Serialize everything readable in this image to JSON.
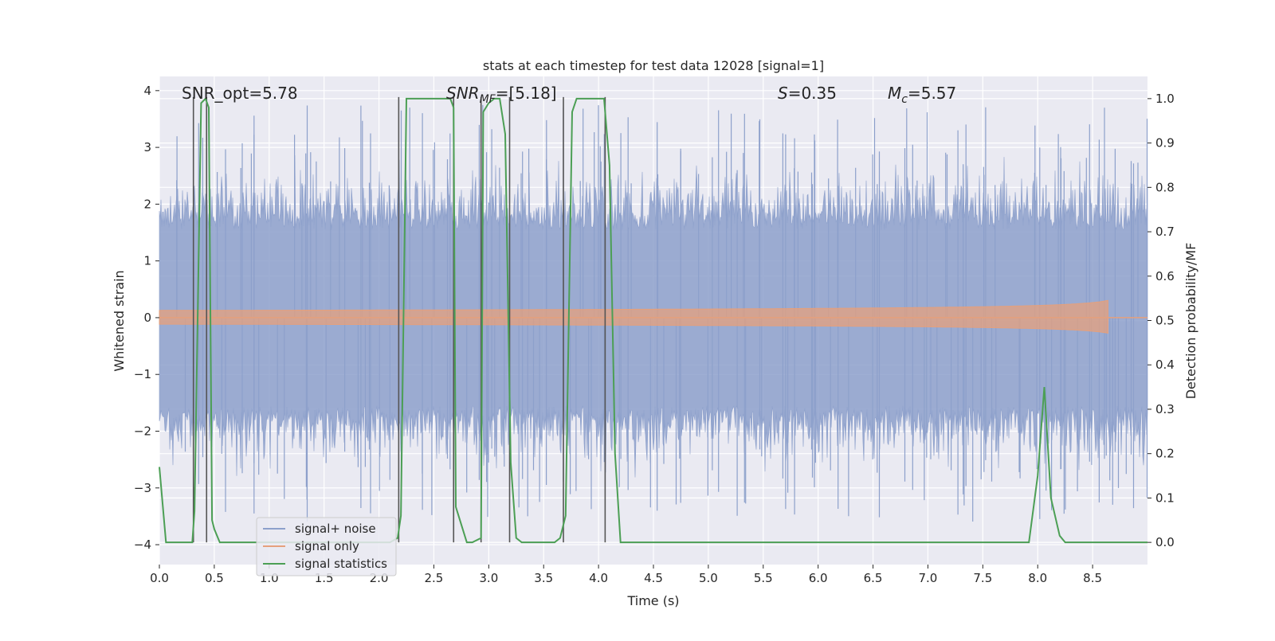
{
  "chart_data": {
    "type": "line",
    "title": "stats at each timestep for test data 12028 [signal=1]",
    "xlabel": "Time (s)",
    "ylabel_left": "Whitened strain",
    "ylabel_right": "Detection probability/MF",
    "xlim": [
      0.0,
      9.0
    ],
    "ylim_left": [
      -4.35,
      4.25
    ],
    "ylim_right": [
      -0.05,
      1.05
    ],
    "xticks": [
      "0.0",
      "0.5",
      "1.0",
      "1.5",
      "2.0",
      "2.5",
      "3.0",
      "3.5",
      "4.0",
      "4.5",
      "5.0",
      "5.5",
      "6.0",
      "6.5",
      "7.0",
      "7.5",
      "8.0",
      "8.5"
    ],
    "yticks_left": [
      "4",
      "3",
      "2",
      "1",
      "0",
      "−1",
      "−2",
      "−3",
      "−4"
    ],
    "yticks_right": [
      "1.0",
      "0.9",
      "0.8",
      "0.7",
      "0.6",
      "0.5",
      "0.4",
      "0.3",
      "0.2",
      "0.1",
      "0.0"
    ],
    "grid": true,
    "legend_position": "lower-left",
    "annotations": {
      "snr_opt": "SNR_opt=5.78",
      "snr_mf": "SNR_MF=[5.18]",
      "s_value": "S=0.35",
      "chirp_mass": "M_c=5.57"
    },
    "series": [
      {
        "name": "signal+ noise",
        "color": "#8da0cb",
        "description_values": {
          "amplitude_typical": 2.3,
          "amplitude_max": 4.0
        }
      },
      {
        "name": "signal only",
        "color": "#e5a07c",
        "merger_time": 8.65,
        "amplitude_at_merger": 0.6
      },
      {
        "name": "signal statistics",
        "color": "#4c9f55",
        "x": [
          0.0,
          0.06,
          0.15,
          0.25,
          0.3,
          0.32,
          0.38,
          0.42,
          0.45,
          0.48,
          0.5,
          0.55,
          0.6,
          0.8,
          1.0,
          1.2,
          1.4,
          1.6,
          1.8,
          2.0,
          2.1,
          2.17,
          2.2,
          2.25,
          2.3,
          2.5,
          2.65,
          2.68,
          2.7,
          2.8,
          2.85,
          2.93,
          2.95,
          3.0,
          3.05,
          3.1,
          3.15,
          3.2,
          3.25,
          3.3,
          3.4,
          3.6,
          3.65,
          3.7,
          3.76,
          3.8,
          3.9,
          4.0,
          4.05,
          4.1,
          4.15,
          4.2,
          4.4,
          5.0,
          6.0,
          7.0,
          7.5,
          7.8,
          7.92,
          8.0,
          8.06,
          8.12,
          8.2,
          8.25,
          8.3,
          8.5,
          8.7,
          9.0
        ],
        "y": [
          0.17,
          0.0,
          0.0,
          0.0,
          0.0,
          0.07,
          0.99,
          1.0,
          0.98,
          0.05,
          0.03,
          0.0,
          0.0,
          0.0,
          0.0,
          0.0,
          0.0,
          0.0,
          0.0,
          0.0,
          0.0,
          0.01,
          0.06,
          1.0,
          1.0,
          1.0,
          1.0,
          0.98,
          0.08,
          0.0,
          0.0,
          0.01,
          0.97,
          0.99,
          1.0,
          1.0,
          0.92,
          0.18,
          0.01,
          0.0,
          0.0,
          0.0,
          0.01,
          0.06,
          0.97,
          1.0,
          1.0,
          1.0,
          1.0,
          0.85,
          0.2,
          0.0,
          0.0,
          0.0,
          0.0,
          0.0,
          0.0,
          0.0,
          0.0,
          0.15,
          0.35,
          0.1,
          0.015,
          0.0,
          0.0,
          0.0,
          0.0,
          0.0
        ]
      }
    ],
    "vertical_lines_x": [
      0.31,
      0.43,
      2.18,
      2.68,
      2.93,
      3.19,
      3.68,
      4.06
    ]
  },
  "legend": {
    "noise_label": "signal+ noise",
    "signal_label": "signal only",
    "stats_label": "signal statistics"
  },
  "colors": {
    "background": "#eaeaf2",
    "noise": "#8da0cb",
    "signal": "#e5a07c",
    "stats": "#4c9f55",
    "vline": "#555555"
  }
}
